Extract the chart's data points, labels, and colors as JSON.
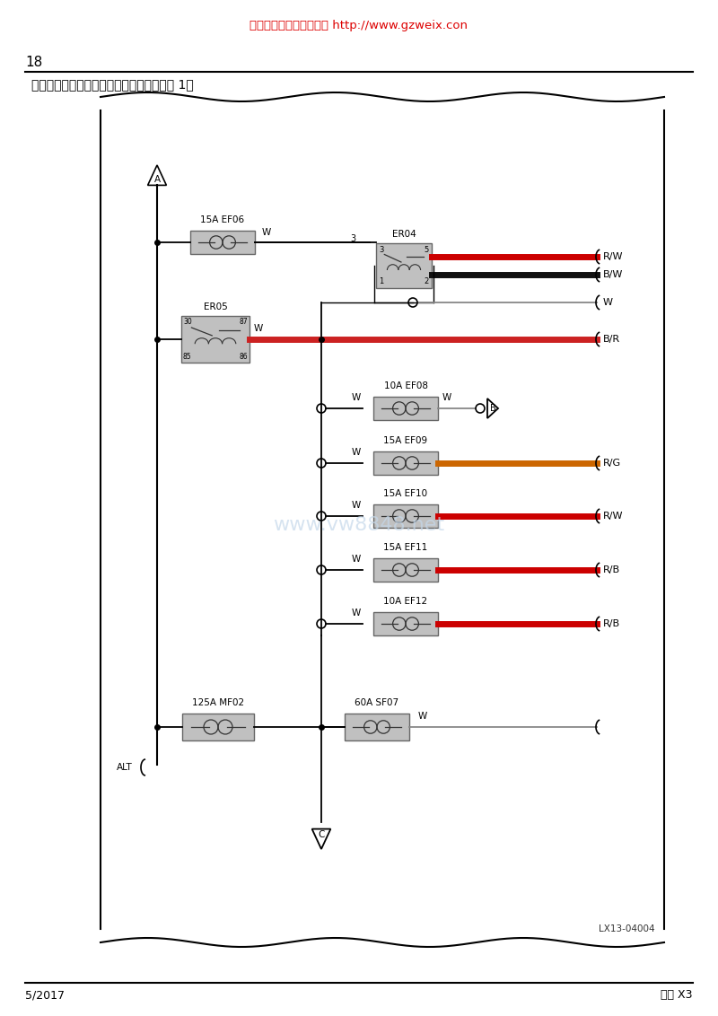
{
  "title_top": "资料来源：精通维修下载 http://www.gzweix.con",
  "page_number": "18",
  "section_title": "发动机舱保险丝、继电器盒内部线路图（续 1）",
  "watermark": "www.vw8848.net",
  "footer_left": "5/2017",
  "footer_right": "远景 X3",
  "diagram_ref": "LX13-04004",
  "bg_color": "#ffffff"
}
